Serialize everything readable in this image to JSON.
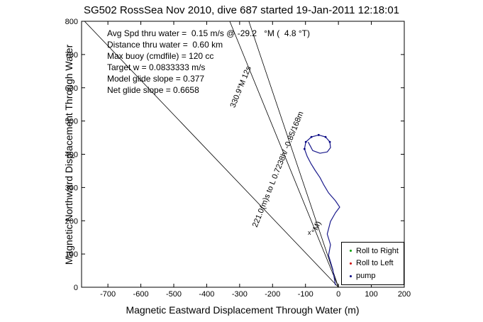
{
  "title": "SG502 RossSea Nov 2010, dive 687 started 19-Jan-2011 12:18:01",
  "stats": [
    "Avg Spd thru water =  0.15 m/s @ -29.2   °M (  4.8 °T)",
    "Distance thru water =  0.60 km",
    "Max buoy (cmdfile) = 120 cc",
    "Target w = 0.0833333 m/s",
    "Model glide slope = 0.377",
    "Net glide slope = 0.6658"
  ],
  "legend": {
    "items": [
      {
        "label": "Roll to Right",
        "color": "#00a000"
      },
      {
        "label": "Roll to Left",
        "color": "#cc0000"
      },
      {
        "label": "pump",
        "color": "#000080"
      }
    ]
  },
  "chart_data": {
    "type": "line",
    "title": "SG502 RossSea Nov 2010, dive 687 started 19-Jan-2011 12:18:01",
    "xlabel": "Magnetic Eastward Displacement Through Water (m)",
    "ylabel": "Magnetic Northward Displacement Through Water",
    "xlim": [
      -780,
      200
    ],
    "ylim": [
      0,
      800
    ],
    "xticks": [
      -700,
      -600,
      -500,
      -400,
      -300,
      -200,
      -100,
      0,
      100,
      200
    ],
    "yticks": [
      0,
      100,
      200,
      300,
      400,
      500,
      600,
      700,
      800
    ],
    "grid": false,
    "legend_position": "lower right",
    "axis_color": "#000000",
    "guide_lines": [
      [
        0,
        0,
        -771,
        800
      ],
      [
        0,
        0,
        -330,
        800
      ],
      [
        0,
        0,
        -272,
        800
      ]
    ],
    "rotated_labels": [
      {
        "text": "330.9°M 12s",
        "x": -290,
        "y": 600,
        "angle": -68
      },
      {
        "text": "221.0(m)s to L 0.7238h/ -0.85/168m",
        "x": -177,
        "y": 352,
        "angle": -68
      },
      {
        "text": "°M)",
        "x": -60,
        "y": 178,
        "angle": -68
      }
    ],
    "x_marker": {
      "x": -88,
      "y": 158,
      "glyph": "x"
    },
    "series": [
      {
        "name": "track through water",
        "color": "#1a1a8c",
        "points": [
          [
            -9,
            6
          ],
          [
            -17,
            53
          ],
          [
            -30,
            96
          ],
          [
            -24,
            128
          ],
          [
            -34,
            160
          ],
          [
            -24,
            198
          ],
          [
            -9,
            224
          ],
          [
            4,
            241
          ],
          [
            -9,
            260
          ],
          [
            -30,
            284
          ],
          [
            -45,
            309
          ],
          [
            -56,
            330
          ],
          [
            -71,
            352
          ],
          [
            -84,
            373
          ],
          [
            -95,
            394
          ],
          [
            -103,
            416
          ],
          [
            -99,
            437
          ],
          [
            -82,
            452
          ],
          [
            -60,
            458
          ],
          [
            -39,
            452
          ],
          [
            -26,
            437
          ],
          [
            -24,
            420
          ],
          [
            -34,
            407
          ],
          [
            -56,
            403
          ],
          [
            -78,
            411
          ],
          [
            -86,
            426
          ],
          [
            -92,
            437
          ]
        ]
      }
    ],
    "pump_points": [
      [
        -103,
        416
      ],
      [
        -99,
        437
      ],
      [
        -82,
        452
      ],
      [
        -60,
        458
      ],
      [
        -39,
        452
      ],
      [
        -26,
        437
      ]
    ]
  }
}
